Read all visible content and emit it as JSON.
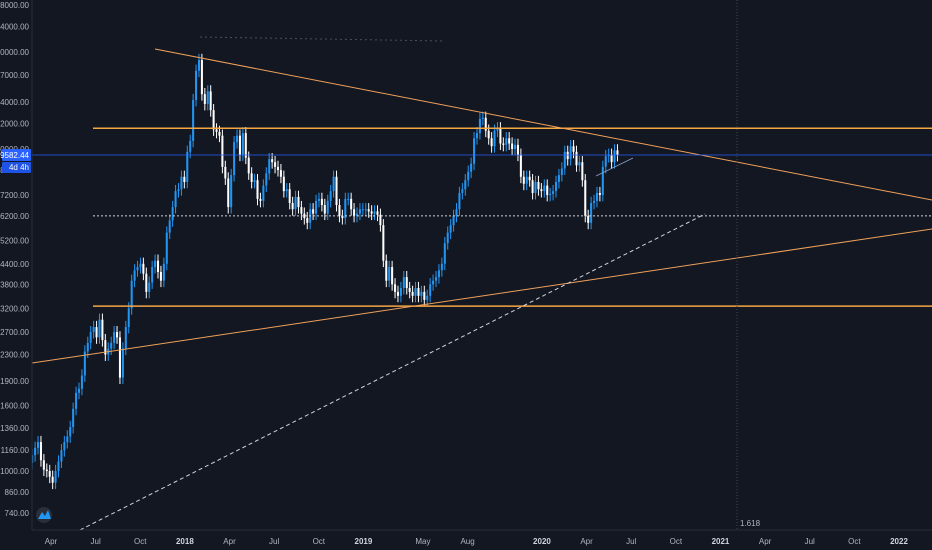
{
  "chart_data": {
    "type": "candlestick",
    "scale": "log",
    "price_axis_side": "left",
    "grid": false,
    "price_ticks": [
      "28000.00",
      "24000.00",
      "20000.00",
      "17000.00",
      "14000.00",
      "12000.00",
      "10000.00",
      "8600.00",
      "7200.00",
      "6200.00",
      "5200.00",
      "4400.00",
      "3800.00",
      "3200.00",
      "2700.00",
      "2300.00",
      "1900.00",
      "1600.00",
      "1360.00",
      "1160.00",
      "1000.00",
      "860.00",
      "740.00"
    ],
    "time_ticks": [
      {
        "date": "2017-04",
        "label": "Apr"
      },
      {
        "date": "2017-07",
        "label": "Jul"
      },
      {
        "date": "2017-10",
        "label": "Oct"
      },
      {
        "date": "2018-01",
        "label": "2018",
        "year": true
      },
      {
        "date": "2018-04",
        "label": "Apr"
      },
      {
        "date": "2018-07",
        "label": "Jul"
      },
      {
        "date": "2018-10",
        "label": "Oct"
      },
      {
        "date": "2019-01",
        "label": "2019",
        "year": true
      },
      {
        "date": "2019-05",
        "label": "May"
      },
      {
        "date": "2019-08",
        "label": "Aug"
      },
      {
        "date": "2020-01",
        "label": "2020",
        "year": true
      },
      {
        "date": "2020-04",
        "label": "Apr"
      },
      {
        "date": "2020-07",
        "label": "Jul"
      },
      {
        "date": "2020-10",
        "label": "Oct"
      },
      {
        "date": "2021-01",
        "label": "2021",
        "year": true
      },
      {
        "date": "2021-04",
        "label": "Apr"
      },
      {
        "date": "2021-07",
        "label": "Jul"
      },
      {
        "date": "2021-10",
        "label": "Oct"
      },
      {
        "date": "2022-01",
        "label": "2022",
        "year": true
      }
    ],
    "last_price_label": "9582.44",
    "countdown_label": "4d 4h",
    "fib_label": "1.618",
    "colors": {
      "background": "#131722",
      "up": "#2196f3",
      "down": "#ffffff",
      "trendline": "#f0a15a",
      "horizontal_level": "#f5a742",
      "last_price": "#2962ff",
      "dotted": "#d1d4dc"
    },
    "weekly_closes": [
      1060,
      1120,
      1180,
      1230,
      1080,
      1010,
      1000,
      960,
      920,
      1000,
      1070,
      1160,
      1230,
      1280,
      1370,
      1560,
      1750,
      1800,
      1980,
      2350,
      2500,
      2700,
      2800,
      2600,
      2950,
      2550,
      2300,
      2400,
      2500,
      2700,
      2600,
      1950,
      2400,
      2800,
      3200,
      3900,
      4200,
      4300,
      4400,
      4100,
      3600,
      3850,
      4300,
      4500,
      4150,
      3900,
      4400,
      5500,
      6000,
      6600,
      7400,
      7500,
      8200,
      7900,
      9800,
      10600,
      14200,
      17500,
      18900,
      14800,
      13800,
      15100,
      13200,
      11500,
      11300,
      11000,
      8800,
      8100,
      6600,
      8300,
      10500,
      11000,
      9600,
      11200,
      9400,
      8400,
      7900,
      8000,
      7000,
      6900,
      7700,
      8400,
      9300,
      9100,
      8800,
      8600,
      8200,
      7400,
      7500,
      6800,
      6500,
      7100,
      6600,
      6300,
      6100,
      5900,
      6500,
      6300,
      6900,
      7000,
      6700,
      6300,
      6900,
      7400,
      8200,
      6700,
      6200,
      6100,
      7000,
      7000,
      6500,
      6200,
      6300,
      6500,
      6500,
      6500,
      6400,
      6300,
      6400,
      6250,
      5800,
      4500,
      3900,
      4300,
      3800,
      3600,
      3500,
      3700,
      4000,
      3700,
      3600,
      3500,
      3700,
      3500,
      3600,
      3400,
      3500,
      3800,
      3900,
      4000,
      4200,
      4400,
      5100,
      5500,
      5800,
      6200,
      6500,
      7300,
      7500,
      8000,
      8500,
      9000,
      10800,
      11200,
      12400,
      12500,
      11400,
      10800,
      10200,
      11400,
      11600,
      10400,
      10300,
      10800,
      10400,
      10000,
      10300,
      9600,
      8200,
      7800,
      8200,
      8000,
      7300,
      7900,
      7500,
      7400,
      7700,
      7200,
      7250,
      7400,
      7900,
      8300,
      8700,
      9800,
      9300,
      10200,
      9800,
      8900,
      9100,
      8000,
      6200,
      5900,
      6800,
      6900,
      7300,
      7200,
      8800,
      9500,
      9600,
      9100,
      9900,
      9582
    ],
    "annotations": []
  }
}
